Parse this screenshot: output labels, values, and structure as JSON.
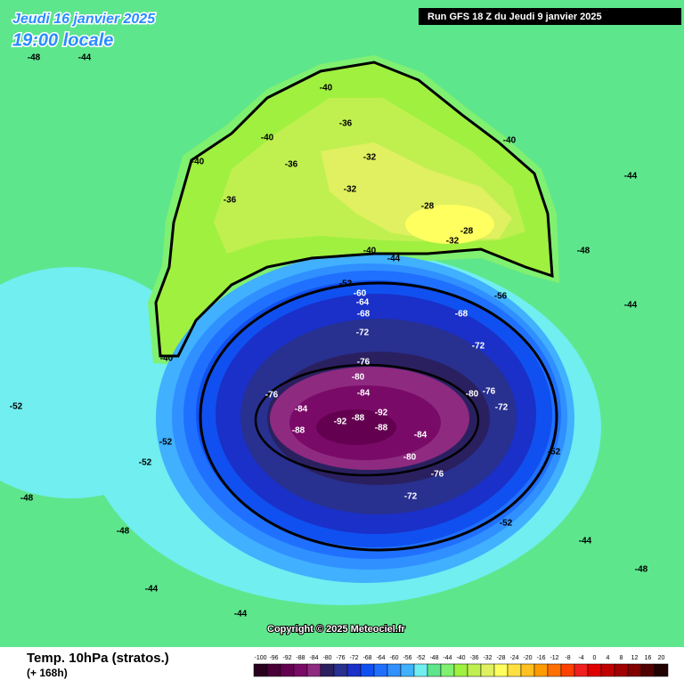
{
  "header": {
    "date": "Jeudi 16 janvier 2025",
    "time": "19:00 locale",
    "run": "Run GFS 18 Z du Jeudi 9 janvier 2025"
  },
  "copyright": "Copyright © 2025 Meteociel.fr",
  "footer": {
    "title": "Temp. 10hPa (stratos.)",
    "lead": "(+ 168h)"
  },
  "colorbar": {
    "ticks": [
      -100,
      -96,
      -92,
      -88,
      -84,
      -80,
      -76,
      -72,
      -68,
      -64,
      -60,
      -56,
      -52,
      -48,
      -44,
      -40,
      -36,
      -32,
      -28,
      -24,
      -20,
      -16,
      -12,
      -8,
      -4,
      0,
      4,
      8,
      12,
      16,
      20
    ],
    "colors": [
      "#2a0020",
      "#4a0038",
      "#640050",
      "#7a0a68",
      "#8e2a80",
      "#2a2060",
      "#283090",
      "#1a30c8",
      "#1050f0",
      "#2070ff",
      "#3090ff",
      "#40b0ff",
      "#70eef0",
      "#5ee68c",
      "#80f070",
      "#a0f040",
      "#c0f050",
      "#e0f060",
      "#ffff60",
      "#ffe040",
      "#ffc020",
      "#ff9a00",
      "#ff7000",
      "#ff4000",
      "#f02020",
      "#e00000",
      "#c00000",
      "#a00000",
      "#800000",
      "#500000",
      "#200000"
    ]
  },
  "contour_labels": [
    -48,
    -44,
    -40,
    -36,
    -36,
    -32,
    -32,
    -28,
    -28,
    -32,
    -40,
    -40,
    -40,
    -36,
    -40,
    -44,
    -52,
    -60,
    -64,
    -68,
    -68,
    -72,
    -72,
    -76,
    -76,
    -80,
    -84,
    -84,
    -88,
    -92,
    -88,
    -92,
    -88,
    -84,
    -80,
    -76,
    -72,
    -80,
    -76,
    -72,
    -52,
    -52,
    -48,
    -52,
    -52,
    -44,
    -48,
    -44,
    -44,
    -56,
    -44,
    -48,
    -44,
    -52,
    -48,
    -40
  ]
}
